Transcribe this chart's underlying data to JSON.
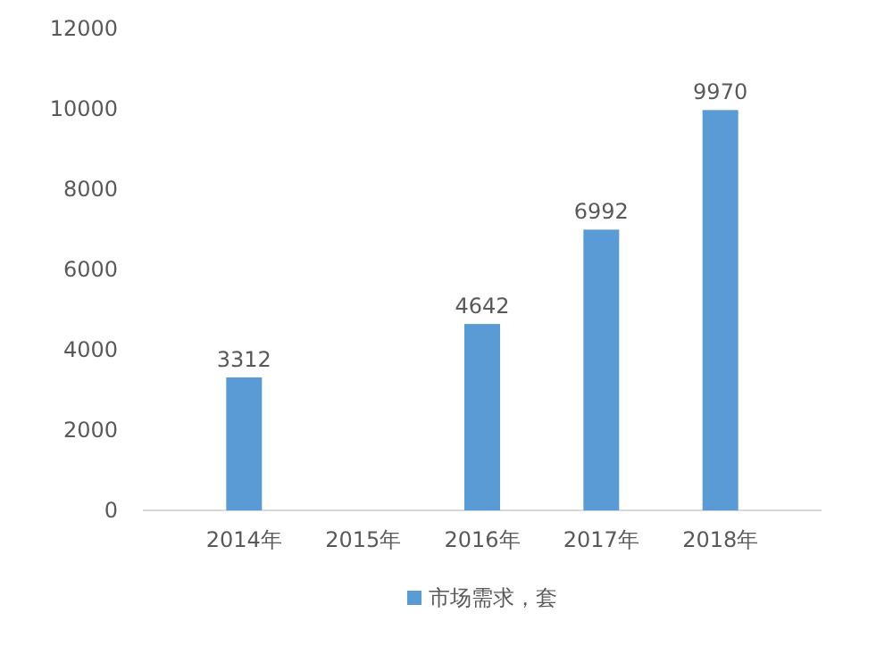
{
  "chart_data": {
    "type": "bar",
    "categories": [
      "2014年",
      "2015年",
      "2016年",
      "2017年",
      "2018年"
    ],
    "series": [
      {
        "name": "市场需求，套",
        "color": "#5b9bd5",
        "values": [
          3312,
          null,
          4642,
          6992,
          9970
        ],
        "value_labels": [
          "3312",
          null,
          "4642",
          "6992",
          "9970"
        ]
      }
    ],
    "ylim": [
      0,
      12000
    ],
    "yticks": [
      0,
      2000,
      4000,
      6000,
      8000,
      10000,
      12000
    ],
    "grid": false,
    "legend": "bottom"
  }
}
